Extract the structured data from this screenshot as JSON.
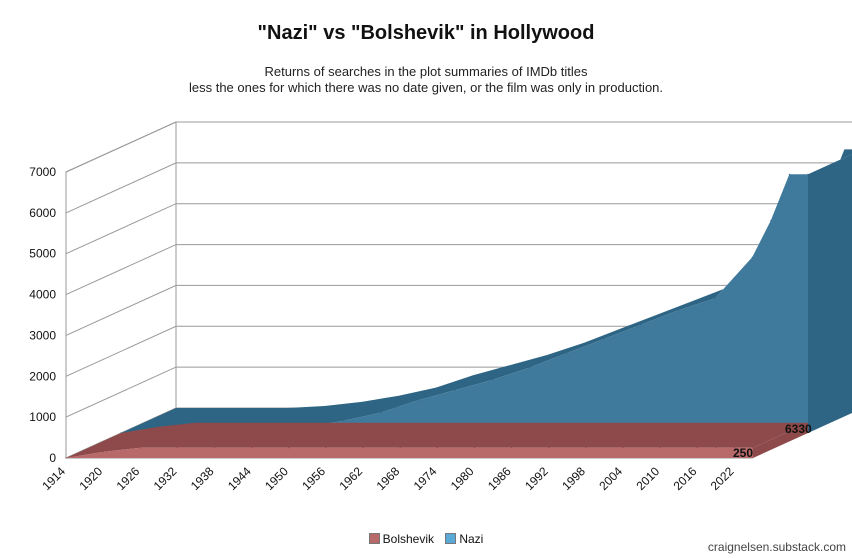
{
  "title": "\"Nazi\" vs \"Bolshevik\" in Hollywood",
  "subtitle_1": "Returns of searches in the plot summaries of IMDb titles",
  "subtitle_2": "less the ones for which there was no date given, or the film was only in production.",
  "credit": "craignelsen.substack.com",
  "colors": {
    "nazi": "#3f7a9c",
    "nazi_top": "#2e6585",
    "nazi_edge": "#5a89a8",
    "bolshevik": "#b86a6a",
    "bolshevik_top": "#8e4a4a",
    "grid": "#999999"
  },
  "chart_data": {
    "type": "area",
    "chart_style": "3d-area",
    "ylim": [
      0,
      7000
    ],
    "y_ticks": [
      0,
      1000,
      2000,
      3000,
      4000,
      5000,
      6000,
      7000
    ],
    "x_tick_labels": [
      "1914",
      "1920",
      "1926",
      "1932",
      "1938",
      "1944",
      "1950",
      "1956",
      "1962",
      "1968",
      "1974",
      "1980",
      "1986",
      "1992",
      "1998",
      "2004",
      "2010",
      "2016",
      "2022"
    ],
    "x": [
      1914,
      1920,
      1926,
      1932,
      1938,
      1944,
      1950,
      1956,
      1962,
      1968,
      1974,
      1980,
      1986,
      1992,
      1998,
      2004,
      2010,
      2016,
      2019,
      2022,
      2025
    ],
    "series": [
      {
        "name": "Bolshevik",
        "values": [
          0,
          150,
          250,
          250,
          250,
          250,
          250,
          250,
          250,
          250,
          250,
          250,
          250,
          250,
          250,
          250,
          250,
          250,
          250,
          250,
          250
        ]
      },
      {
        "name": "Nazi",
        "values": [
          0,
          0,
          0,
          0,
          50,
          150,
          300,
          500,
          800,
          1050,
          1300,
          1600,
          1950,
          2300,
          2650,
          3000,
          3300,
          4300,
          5200,
          6330,
          6330
        ]
      }
    ],
    "end_labels": {
      "Nazi": "6330",
      "Bolshevik": "250"
    },
    "legend": [
      "Bolshevik",
      "Nazi"
    ],
    "legend_position": "bottom",
    "grid": true
  }
}
